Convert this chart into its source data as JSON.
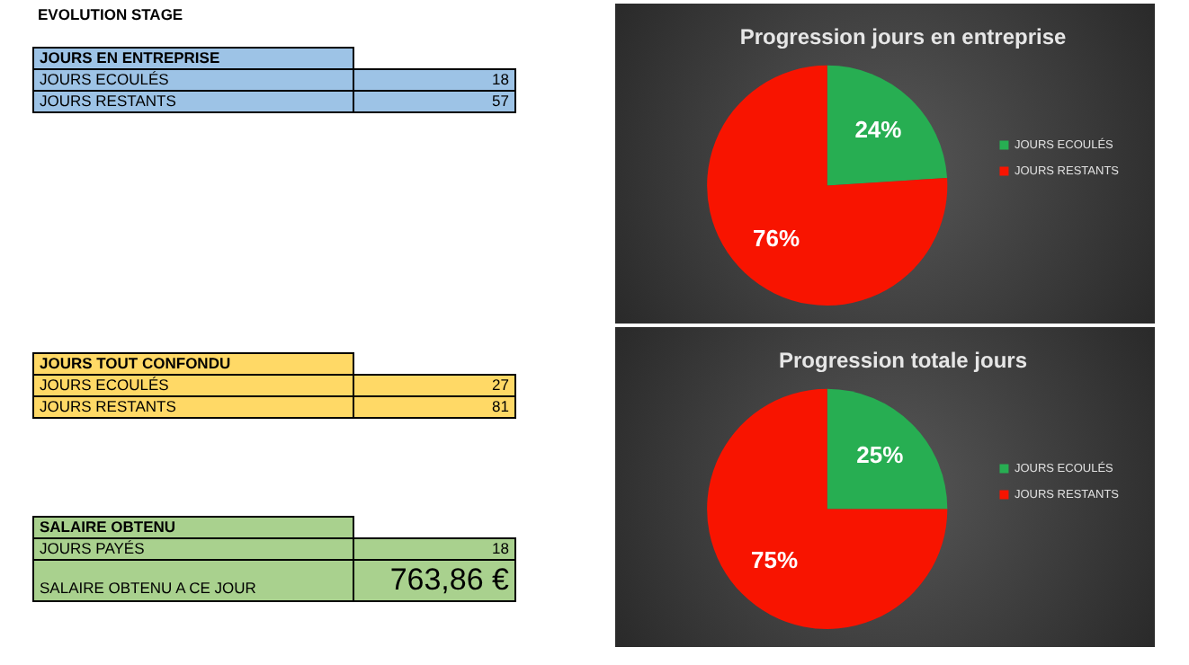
{
  "chart_data": [
    {
      "type": "other",
      "title": "EVOLUTION STAGE",
      "annotations": [
        "JOURS EN ENTREPRISE",
        "JOURS ECOULÉS",
        "18",
        "JOURS RESTANTS",
        "57",
        "JOURS TOUT CONFONDU",
        "JOURS ECOULÉS",
        "27",
        "JOURS RESTANTS",
        "81",
        "SALAIRE OBTENU",
        "JOURS PAYÉS",
        "18",
        "SALAIRE OBTENU A CE JOUR",
        "763,86 €"
      ]
    },
    {
      "type": "pie",
      "title": "Progression jours en entreprise",
      "categories": [
        "JOURS ECOULÉS",
        "JOURS RESTANTS"
      ],
      "values": [
        24,
        76
      ],
      "colors": [
        "#27ae52",
        "#f81400"
      ],
      "value_labels": [
        "24%",
        "76%"
      ],
      "legend": "right"
    },
    {
      "type": "pie",
      "title": "Progression totale jours",
      "categories": [
        "JOURS ECOULÉS",
        "JOURS RESTANTS"
      ],
      "values": [
        25,
        75
      ],
      "colors": [
        "#27ae52",
        "#f81400"
      ],
      "value_labels": [
        "25%",
        "75%"
      ],
      "legend": "right"
    }
  ]
}
